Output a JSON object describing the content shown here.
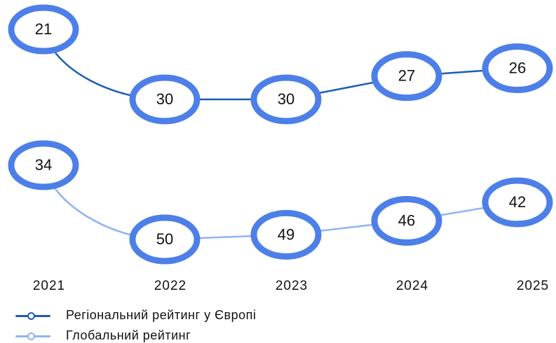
{
  "chart_data": {
    "type": "line",
    "categories": [
      "2021",
      "2022",
      "2023",
      "2024",
      "2025"
    ],
    "series": [
      {
        "name": "Регіональний рейтинг у Європі",
        "values": [
          21,
          30,
          30,
          27,
          26
        ],
        "color": "#1a5db3"
      },
      {
        "name": "Глобальний рейтинг",
        "values": [
          34,
          50,
          49,
          46,
          42
        ],
        "color": "#8fb3f5"
      }
    ],
    "marker_ring_color": "#4d7fe8",
    "title": "",
    "xlabel": "",
    "ylabel": ""
  },
  "legend": [
    {
      "label": "Регіональний рейтинг у Європі"
    },
    {
      "label": "Глобальний рейтинг"
    }
  ]
}
